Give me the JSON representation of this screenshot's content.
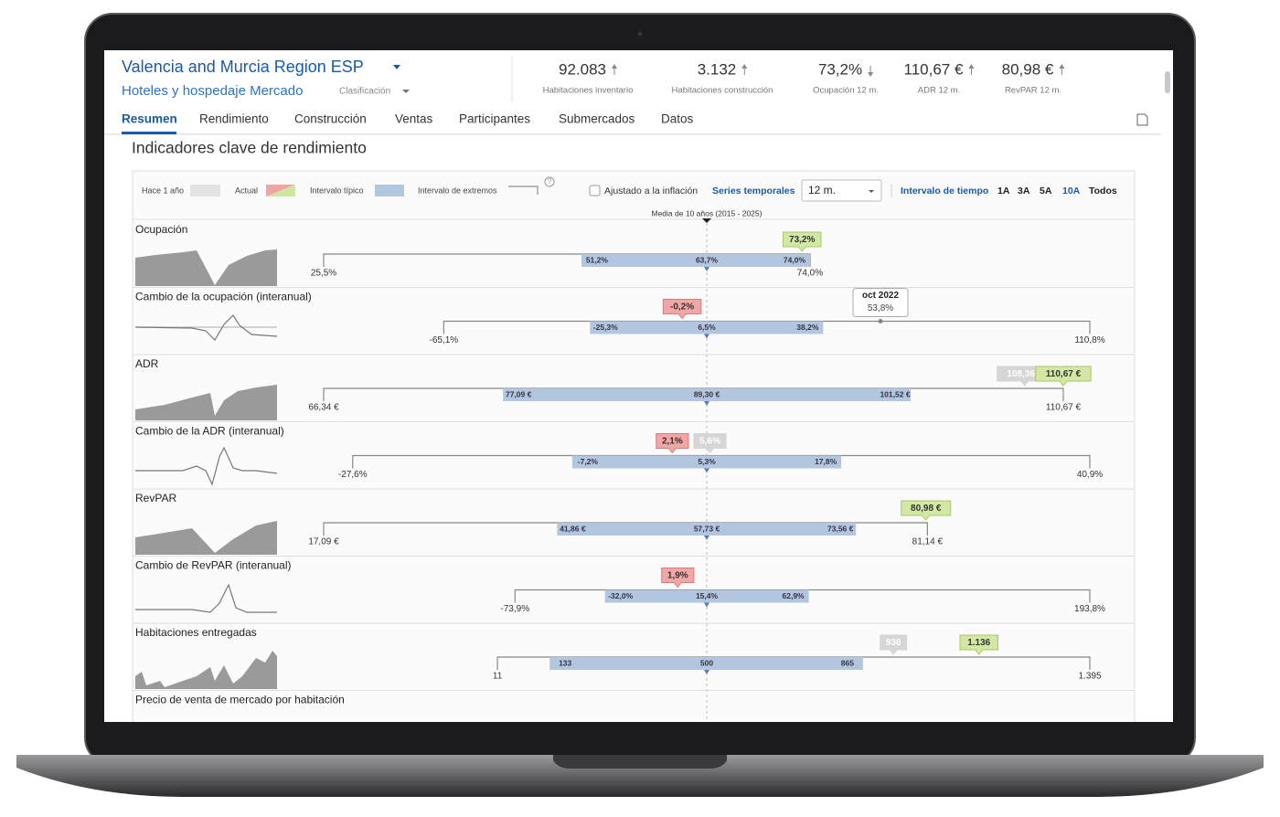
{
  "header": {
    "title": "Valencia and Murcia Region ESP",
    "subtitle": "Hoteles y hospedaje Mercado",
    "ranking": "Clasificación"
  },
  "kpis": [
    {
      "value": "92.083",
      "label": "Habitaciones inventario"
    },
    {
      "value": "3.132",
      "label": "Habitaciones construcción"
    },
    {
      "value": "73,2%",
      "label": "Ocupación 12 m."
    },
    {
      "value": "110,67 €",
      "label": "ADR 12 m."
    },
    {
      "value": "80,98 €",
      "label": "RevPAR 12 m."
    }
  ],
  "tabs": [
    "Resumen",
    "Rendimiento",
    "Construcción",
    "Ventas",
    "Participantes",
    "Submercados",
    "Datos"
  ],
  "section_title": "Indicadores clave de rendimiento",
  "legend": {
    "year_ago": "Hace 1 año",
    "current": "Actual",
    "typical": "Intervalo típico",
    "extremes": "Intervalo de extremos",
    "help": "?"
  },
  "controls": {
    "inflation": "Ajustado a la inflación",
    "series": "Series temporales",
    "period": "12 m.",
    "interval": "Intervalo de tiempo",
    "ranges": [
      "1A",
      "3A",
      "5A",
      "10A",
      "Todos"
    ]
  },
  "median_note": "Media de 10 años (2015 - 2025)",
  "rows": [
    {
      "title": "Ocupación",
      "min": {
        "value": 25.5,
        "label": "25,5%"
      },
      "p25": {
        "value": 51.2,
        "label": "51,2%"
      },
      "median": {
        "value": 63.7,
        "label": "63,7%"
      },
      "p75": {
        "value": 74.0,
        "label": "74,0%"
      },
      "max": {
        "value": 74.0,
        "label": "74,0%"
      },
      "current": {
        "value": 73.2,
        "label": "73,2%"
      },
      "trend": "up"
    },
    {
      "title": "Cambio de la ocupación (interanual)",
      "min": {
        "value": -65.1,
        "label": "-65,1%"
      },
      "p25": {
        "value": -25.3,
        "label": "-25,3%"
      },
      "median": {
        "value": 6.5,
        "label": "6,5%"
      },
      "p75": {
        "value": 38.2,
        "label": "38,2%"
      },
      "max": {
        "value": 110.8,
        "label": "110,8%"
      },
      "current": {
        "value": -0.2,
        "label": "-0,2%"
      },
      "trend": "down",
      "tooltip": {
        "title": "oct 2022",
        "value": {
          "value": 53.8,
          "label": "53,8%"
        }
      }
    },
    {
      "title": "ADR",
      "min": {
        "value": 66.34,
        "label": "66,34 €"
      },
      "p25": {
        "value": 77.09,
        "label": "77,09 €"
      },
      "median": {
        "value": 89.3,
        "label": "89,30 €"
      },
      "p75": {
        "value": 101.52,
        "label": "101,52 €"
      },
      "max": {
        "value": 110.67,
        "label": "110,67 €"
      },
      "year_ago": {
        "value": 108.36,
        "label": "108,36 €"
      },
      "current": {
        "value": 110.67,
        "label": "110,67 €"
      },
      "trend": "up"
    },
    {
      "title": "Cambio de la ADR (interanual)",
      "min": {
        "value": -27.6,
        "label": "-27,6%"
      },
      "p25": {
        "value": -7.2,
        "label": "-7,2%"
      },
      "median": {
        "value": 5.3,
        "label": "5,3%"
      },
      "p75": {
        "value": 17.8,
        "label": "17,8%"
      },
      "max": {
        "value": 40.9,
        "label": "40,9%"
      },
      "year_ago": {
        "value": 5.6,
        "label": "5,6%"
      },
      "current": {
        "value": 2.1,
        "label": "2,1%"
      },
      "trend": "down"
    },
    {
      "title": "RevPAR",
      "min": {
        "value": 17.09,
        "label": "17,09 €"
      },
      "p25": {
        "value": 41.86,
        "label": "41,86 €"
      },
      "median": {
        "value": 57.73,
        "label": "57,73 €"
      },
      "p75": {
        "value": 73.56,
        "label": "73,56 €"
      },
      "max": {
        "value": 81.14,
        "label": "81,14 €"
      },
      "current": {
        "value": 80.98,
        "label": "80,98 €"
      },
      "trend": "up"
    },
    {
      "title": "Cambio de RevPAR (interanual)",
      "min": {
        "value": -73.9,
        "label": "-73,9%"
      },
      "p25": {
        "value": -32.0,
        "label": "-32,0%"
      },
      "median": {
        "value": 15.4,
        "label": "15,4%"
      },
      "p75": {
        "value": 62.9,
        "label": "62,9%"
      },
      "max": {
        "value": 193.8,
        "label": "193,8%"
      },
      "current": {
        "value": 1.9,
        "label": "1,9%"
      },
      "trend": "down"
    },
    {
      "title": "Habitaciones entregadas",
      "min": {
        "value": 11,
        "label": "11"
      },
      "p25": {
        "value": 133,
        "label": "133"
      },
      "median": {
        "value": 500,
        "label": "500"
      },
      "p75": {
        "value": 865,
        "label": "865"
      },
      "max": {
        "value": 1395,
        "label": "1.395"
      },
      "year_ago": {
        "value": 936,
        "label": "936"
      },
      "current": {
        "value": 1136,
        "label": "1.136"
      },
      "trend": "up"
    }
  ],
  "last_row": "Precio de venta de mercado por habitación"
}
